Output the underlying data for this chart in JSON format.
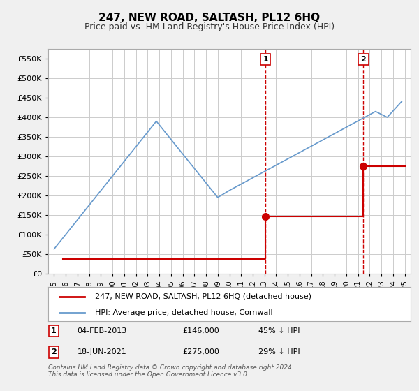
{
  "title": "247, NEW ROAD, SALTASH, PL12 6HQ",
  "subtitle": "Price paid vs. HM Land Registry's House Price Index (HPI)",
  "ytick_values": [
    0,
    50000,
    100000,
    150000,
    200000,
    250000,
    300000,
    350000,
    400000,
    450000,
    500000,
    550000
  ],
  "x_tick_years": [
    1995,
    1996,
    1997,
    1998,
    1999,
    2000,
    2001,
    2002,
    2003,
    2004,
    2005,
    2006,
    2007,
    2008,
    2009,
    2010,
    2011,
    2012,
    2013,
    2014,
    2015,
    2016,
    2017,
    2018,
    2019,
    2020,
    2021,
    2022,
    2023,
    2024,
    2025
  ],
  "hpi_color": "#6699cc",
  "price_color": "#cc0000",
  "vline_color": "#cc0000",
  "marker1_year": 2013.09,
  "marker1_label": "1",
  "marker1_price": 146000,
  "marker1_date": "04-FEB-2013",
  "marker1_pct": "45% ↓ HPI",
  "marker2_year": 2021.46,
  "marker2_label": "2",
  "marker2_price": 275000,
  "marker2_date": "18-JUN-2021",
  "marker2_pct": "29% ↓ HPI",
  "legend_line1": "247, NEW ROAD, SALTASH, PL12 6HQ (detached house)",
  "legend_line2": "HPI: Average price, detached house, Cornwall",
  "footer": "Contains HM Land Registry data © Crown copyright and database right 2024.\nThis data is licensed under the Open Government Licence v3.0.",
  "background_color": "#f0f0f0",
  "plot_bg_color": "#ffffff",
  "grid_color": "#cccccc",
  "price_data_x": [
    1995.75,
    2013.09,
    2021.46
  ],
  "price_data_y": [
    37000,
    146000,
    275000
  ],
  "x_end_year": 2025
}
